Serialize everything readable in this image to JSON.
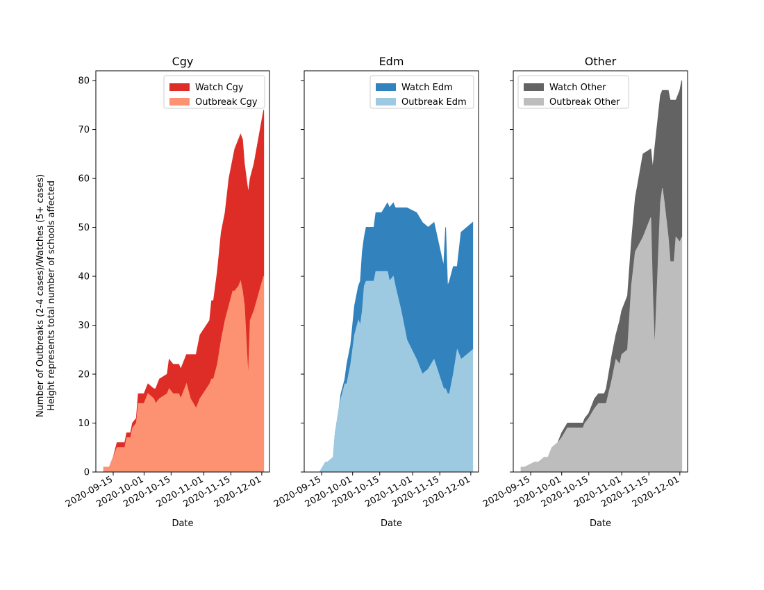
{
  "ylabel_line1": "Number of Outbreaks (2-4 cases)/Watches (5+ cases)",
  "ylabel_line2": "Height represents total number of schools affected",
  "chart_data": [
    {
      "type": "area",
      "title": "Cgy",
      "xlabel": "Date",
      "ylabel": "Number of Outbreaks (2-4 cases)/Watches (5+ cases)\nHeight represents total number of schools affected",
      "legend_position": "top-right",
      "ylim": [
        0,
        82
      ],
      "yticks": [
        0,
        10,
        20,
        30,
        40,
        50,
        60,
        70,
        80
      ],
      "xticks": [
        "2020-09-15",
        "2020-10-01",
        "2020-10-15",
        "2020-11-01",
        "2020-11-15",
        "2020-12-01"
      ],
      "x": [
        "2020-09-10",
        "2020-09-13",
        "2020-09-15",
        "2020-09-17",
        "2020-09-21",
        "2020-09-22",
        "2020-09-24",
        "2020-09-25",
        "2020-09-27",
        "2020-09-28",
        "2020-10-01",
        "2020-10-03",
        "2020-10-06",
        "2020-10-07",
        "2020-10-09",
        "2020-10-13",
        "2020-10-14",
        "2020-10-16",
        "2020-10-19",
        "2020-10-20",
        "2020-10-22",
        "2020-10-23",
        "2020-10-25",
        "2020-10-28",
        "2020-10-30",
        "2020-11-04",
        "2020-11-05",
        "2020-11-06",
        "2020-11-08",
        "2020-11-10",
        "2020-11-12",
        "2020-11-14",
        "2020-11-16",
        "2020-11-17",
        "2020-11-19",
        "2020-11-20",
        "2020-11-21",
        "2020-11-22",
        "2020-11-24",
        "2020-11-25",
        "2020-11-27",
        "2020-12-02"
      ],
      "series": [
        {
          "name": "Outbreak Cgy",
          "color": "#fc9272",
          "values": [
            1,
            1,
            3,
            5,
            5,
            7,
            7,
            9,
            10,
            14,
            14,
            16,
            15,
            14,
            15,
            16,
            17,
            16,
            16,
            15,
            17,
            18,
            15,
            13,
            15,
            18,
            19,
            19,
            22,
            27,
            31,
            34,
            37,
            37,
            38,
            39,
            37,
            34,
            19,
            31,
            33,
            40
          ]
        },
        {
          "name": "Watch Cgy",
          "color": "#de2d26",
          "values": [
            0,
            0,
            0,
            1,
            1,
            1,
            1,
            1,
            1,
            2,
            2,
            2,
            2,
            3,
            4,
            4,
            6,
            6,
            6,
            6,
            6,
            6,
            9,
            11,
            13,
            13,
            16,
            16,
            19,
            22,
            22,
            26,
            27,
            29,
            30,
            30,
            31,
            29,
            38,
            29,
            30,
            34
          ]
        }
      ]
    },
    {
      "type": "area",
      "title": "Edm",
      "xlabel": "Date",
      "legend_position": "top-right",
      "ylim": [
        0,
        82
      ],
      "xticks": [
        "2020-09-15",
        "2020-10-01",
        "2020-10-15",
        "2020-11-01",
        "2020-11-15",
        "2020-12-01"
      ],
      "x": [
        "2020-09-10",
        "2020-09-14",
        "2020-09-17",
        "2020-09-18",
        "2020-09-21",
        "2020-09-22",
        "2020-09-24",
        "2020-09-25",
        "2020-09-27",
        "2020-09-28",
        "2020-09-30",
        "2020-10-02",
        "2020-10-04",
        "2020-10-05",
        "2020-10-06",
        "2020-10-07",
        "2020-10-08",
        "2020-10-12",
        "2020-10-13",
        "2020-10-16",
        "2020-10-19",
        "2020-10-20",
        "2020-10-22",
        "2020-10-23",
        "2020-10-26",
        "2020-10-29",
        "2020-11-03",
        "2020-11-06",
        "2020-11-09",
        "2020-11-12",
        "2020-11-17",
        "2020-11-18",
        "2020-11-19",
        "2020-11-20",
        "2020-11-22",
        "2020-11-24",
        "2020-11-26",
        "2020-11-29",
        "2020-12-02"
      ],
      "series": [
        {
          "name": "Outbreak Edm",
          "color": "#9ecae1",
          "values": [
            0,
            0,
            2,
            2,
            3,
            8,
            13,
            15,
            18,
            18,
            22,
            28,
            31,
            30,
            33,
            38,
            39,
            39,
            41,
            41,
            41,
            39,
            40,
            38,
            33,
            27,
            23,
            20,
            21,
            23,
            17,
            17,
            16,
            16,
            20,
            25,
            23,
            24,
            25
          ]
        },
        {
          "name": "Watch Edm",
          "color": "#3182bd",
          "values": [
            0,
            0,
            0,
            0,
            0,
            0,
            0,
            1,
            1,
            4,
            4,
            6,
            7,
            9,
            12,
            10,
            11,
            11,
            12,
            12,
            14,
            15,
            15,
            16,
            21,
            27,
            30,
            31,
            29,
            28,
            25,
            33,
            22,
            23,
            22,
            17,
            26,
            26,
            26
          ]
        }
      ]
    },
    {
      "type": "area",
      "title": "Other",
      "xlabel": "Date",
      "legend_position": "top-left",
      "ylim": [
        0,
        82
      ],
      "xticks": [
        "2020-09-15",
        "2020-10-01",
        "2020-10-15",
        "2020-11-01",
        "2020-11-15",
        "2020-12-01"
      ],
      "x": [
        "2020-09-10",
        "2020-09-12",
        "2020-09-17",
        "2020-09-19",
        "2020-09-22",
        "2020-09-24",
        "2020-09-26",
        "2020-09-29",
        "2020-10-01",
        "2020-10-04",
        "2020-10-06",
        "2020-10-07",
        "2020-10-09",
        "2020-10-12",
        "2020-10-13",
        "2020-10-15",
        "2020-10-18",
        "2020-10-20",
        "2020-10-23",
        "2020-10-24",
        "2020-10-27",
        "2020-10-29",
        "2020-10-31",
        "2020-11-01",
        "2020-11-04",
        "2020-11-06",
        "2020-11-08",
        "2020-11-12",
        "2020-11-16",
        "2020-11-17",
        "2020-11-18",
        "2020-11-21",
        "2020-11-22",
        "2020-11-23",
        "2020-11-25",
        "2020-11-26",
        "2020-11-28",
        "2020-11-29",
        "2020-12-01",
        "2020-12-02"
      ],
      "series": [
        {
          "name": "Outbreak Other",
          "color": "#bdbdbd",
          "values": [
            1,
            1,
            2,
            2,
            3,
            3,
            5,
            6,
            7,
            9,
            9,
            9,
            9,
            9,
            10,
            11,
            13,
            14,
            14,
            14,
            19,
            23,
            22,
            24,
            25,
            38,
            45,
            48,
            52,
            36,
            25,
            55,
            58,
            55,
            48,
            43,
            43,
            48,
            47,
            48
          ]
        },
        {
          "name": "Watch Other",
          "color": "#636363",
          "values": [
            0,
            0,
            0,
            0,
            0,
            0,
            0,
            0,
            1,
            1,
            1,
            1,
            1,
            1,
            1,
            1,
            2,
            2,
            2,
            3,
            5,
            5,
            9,
            9,
            11,
            9,
            11,
            17,
            14,
            26,
            41,
            22,
            20,
            23,
            30,
            33,
            33,
            28,
            31,
            32
          ]
        }
      ]
    }
  ]
}
